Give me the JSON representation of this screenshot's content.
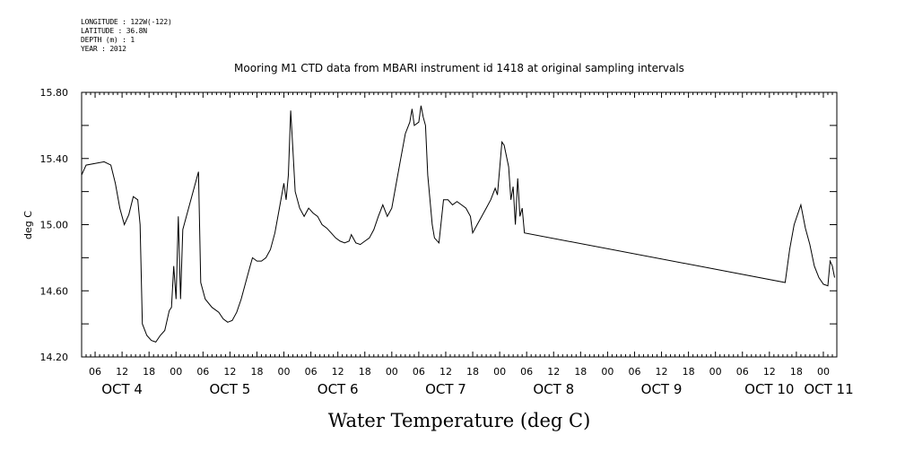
{
  "header": {
    "longitude": "LONGITUDE : 122W(-122)",
    "latitude": "LATITUDE : 36.8N",
    "depth": "DEPTH (m) : 1",
    "year": "YEAR : 2012"
  },
  "chart_data": {
    "type": "line",
    "title": "Mooring M1 CTD data from MBARI instrument id 1418 at original sampling intervals",
    "xlabel": "Water Temperature (deg C)",
    "ylabel": "deg C",
    "ylim": [
      14.2,
      15.8
    ],
    "yticks": [
      "14.20",
      "14.60",
      "15.00",
      "15.40",
      "15.80"
    ],
    "xlim": [
      "2012-10-04T03:00",
      "2012-10-11T03:00"
    ],
    "hour_labels": [
      "06",
      "12",
      "18",
      "00",
      "06",
      "12",
      "18",
      "00",
      "06",
      "12",
      "18",
      "00",
      "06",
      "12",
      "18",
      "00",
      "06",
      "12",
      "18",
      "00",
      "06",
      "12",
      "18",
      "00",
      "06",
      "12",
      "18",
      "00"
    ],
    "day_labels": [
      "OCT 4",
      "OCT 5",
      "OCT 6",
      "OCT 7",
      "OCT 8",
      "OCT 9",
      "OCT 10",
      "OCT 11"
    ],
    "series": [
      {
        "values": [
          [
            "2012-10-04T03:00",
            15.3
          ],
          [
            "2012-10-04T04:00",
            15.36
          ],
          [
            "2012-10-04T06:00",
            15.37
          ],
          [
            "2012-10-04T08:00",
            15.38
          ],
          [
            "2012-10-04T09:30",
            15.36
          ],
          [
            "2012-10-04T10:30",
            15.25
          ],
          [
            "2012-10-04T11:30",
            15.1
          ],
          [
            "2012-10-04T12:30",
            15.0
          ],
          [
            "2012-10-04T13:30",
            15.06
          ],
          [
            "2012-10-04T14:30",
            15.17
          ],
          [
            "2012-10-04T15:30",
            15.15
          ],
          [
            "2012-10-04T16:00",
            15.0
          ],
          [
            "2012-10-04T16:30",
            14.4
          ],
          [
            "2012-10-04T17:30",
            14.33
          ],
          [
            "2012-10-04T18:30",
            14.3
          ],
          [
            "2012-10-04T19:30",
            14.29
          ],
          [
            "2012-10-04T20:30",
            14.33
          ],
          [
            "2012-10-04T21:30",
            14.36
          ],
          [
            "2012-10-04T22:30",
            14.48
          ],
          [
            "2012-10-04T23:00",
            14.5
          ],
          [
            "2012-10-04T23:30",
            14.75
          ],
          [
            "2012-10-05T00:00",
            14.55
          ],
          [
            "2012-10-05T00:30",
            15.05
          ],
          [
            "2012-10-05T01:00",
            14.55
          ],
          [
            "2012-10-05T01:30",
            14.97
          ],
          [
            "2012-10-05T05:00",
            15.32
          ],
          [
            "2012-10-05T05:30",
            14.65
          ],
          [
            "2012-10-05T06:30",
            14.55
          ],
          [
            "2012-10-05T08:00",
            14.5
          ],
          [
            "2012-10-05T09:30",
            14.47
          ],
          [
            "2012-10-05T10:30",
            14.43
          ],
          [
            "2012-10-05T11:30",
            14.41
          ],
          [
            "2012-10-05T12:30",
            14.42
          ],
          [
            "2012-10-05T13:30",
            14.47
          ],
          [
            "2012-10-05T14:30",
            14.55
          ],
          [
            "2012-10-05T15:30",
            14.65
          ],
          [
            "2012-10-05T16:30",
            14.75
          ],
          [
            "2012-10-05T17:00",
            14.8
          ],
          [
            "2012-10-05T18:00",
            14.78
          ],
          [
            "2012-10-05T19:00",
            14.78
          ],
          [
            "2012-10-05T20:00",
            14.8
          ],
          [
            "2012-10-05T21:00",
            14.85
          ],
          [
            "2012-10-05T22:00",
            14.95
          ],
          [
            "2012-10-05T23:00",
            15.1
          ],
          [
            "2012-10-06T00:00",
            15.25
          ],
          [
            "2012-10-06T00:30",
            15.15
          ],
          [
            "2012-10-06T01:00",
            15.3
          ],
          [
            "2012-10-06T01:30",
            15.69
          ],
          [
            "2012-10-06T02:00",
            15.45
          ],
          [
            "2012-10-06T02:30",
            15.2
          ],
          [
            "2012-10-06T03:30",
            15.1
          ],
          [
            "2012-10-06T04:30",
            15.05
          ],
          [
            "2012-10-06T05:30",
            15.1
          ],
          [
            "2012-10-06T06:30",
            15.07
          ],
          [
            "2012-10-06T07:30",
            15.05
          ],
          [
            "2012-10-06T08:30",
            15.0
          ],
          [
            "2012-10-06T09:30",
            14.98
          ],
          [
            "2012-10-06T10:30",
            14.95
          ],
          [
            "2012-10-06T11:30",
            14.92
          ],
          [
            "2012-10-06T12:30",
            14.9
          ],
          [
            "2012-10-06T13:30",
            14.89
          ],
          [
            "2012-10-06T14:30",
            14.9
          ],
          [
            "2012-10-06T15:00",
            14.94
          ],
          [
            "2012-10-06T16:00",
            14.89
          ],
          [
            "2012-10-06T17:00",
            14.88
          ],
          [
            "2012-10-06T18:00",
            14.9
          ],
          [
            "2012-10-06T19:00",
            14.92
          ],
          [
            "2012-10-06T20:00",
            14.97
          ],
          [
            "2012-10-06T21:00",
            15.05
          ],
          [
            "2012-10-06T22:00",
            15.12
          ],
          [
            "2012-10-06T23:00",
            15.05
          ],
          [
            "2012-10-07T00:00",
            15.1
          ],
          [
            "2012-10-07T01:00",
            15.25
          ],
          [
            "2012-10-07T02:00",
            15.4
          ],
          [
            "2012-10-07T03:00",
            15.55
          ],
          [
            "2012-10-07T04:00",
            15.62
          ],
          [
            "2012-10-07T04:30",
            15.7
          ],
          [
            "2012-10-07T05:00",
            15.6
          ],
          [
            "2012-10-07T06:00",
            15.62
          ],
          [
            "2012-10-07T06:30",
            15.72
          ],
          [
            "2012-10-07T07:00",
            15.65
          ],
          [
            "2012-10-07T07:30",
            15.6
          ],
          [
            "2012-10-07T08:00",
            15.3
          ],
          [
            "2012-10-07T09:00",
            15.0
          ],
          [
            "2012-10-07T09:30",
            14.92
          ],
          [
            "2012-10-07T10:30",
            14.89
          ],
          [
            "2012-10-07T11:30",
            15.15
          ],
          [
            "2012-10-07T12:30",
            15.15
          ],
          [
            "2012-10-07T13:30",
            15.12
          ],
          [
            "2012-10-07T14:30",
            15.14
          ],
          [
            "2012-10-07T15:30",
            15.12
          ],
          [
            "2012-10-07T16:30",
            15.1
          ],
          [
            "2012-10-07T17:30",
            15.05
          ],
          [
            "2012-10-07T18:00",
            14.95
          ],
          [
            "2012-10-07T19:00",
            15.0
          ],
          [
            "2012-10-07T20:00",
            15.05
          ],
          [
            "2012-10-07T21:00",
            15.1
          ],
          [
            "2012-10-07T22:00",
            15.15
          ],
          [
            "2012-10-07T23:00",
            15.22
          ],
          [
            "2012-10-07T23:30",
            15.18
          ],
          [
            "2012-10-08T00:30",
            15.5
          ],
          [
            "2012-10-08T01:00",
            15.48
          ],
          [
            "2012-10-08T02:00",
            15.35
          ],
          [
            "2012-10-08T02:30",
            15.15
          ],
          [
            "2012-10-08T03:00",
            15.23
          ],
          [
            "2012-10-08T03:30",
            15.0
          ],
          [
            "2012-10-08T04:00",
            15.28
          ],
          [
            "2012-10-08T04:30",
            15.05
          ],
          [
            "2012-10-08T05:00",
            15.1
          ],
          [
            "2012-10-08T05:30",
            14.95
          ],
          [
            "2012-10-10T15:30",
            14.65
          ],
          [
            "2012-10-10T16:30",
            14.85
          ],
          [
            "2012-10-10T17:30",
            15.0
          ],
          [
            "2012-10-10T19:00",
            15.12
          ],
          [
            "2012-10-10T20:00",
            14.98
          ],
          [
            "2012-10-10T21:00",
            14.88
          ],
          [
            "2012-10-10T22:00",
            14.75
          ],
          [
            "2012-10-10T23:00",
            14.68
          ],
          [
            "2012-10-11T00:00",
            14.64
          ],
          [
            "2012-10-11T01:00",
            14.63
          ],
          [
            "2012-10-11T01:30",
            14.78
          ],
          [
            "2012-10-11T02:00",
            14.75
          ],
          [
            "2012-10-11T02:30",
            14.68
          ]
        ]
      }
    ]
  }
}
